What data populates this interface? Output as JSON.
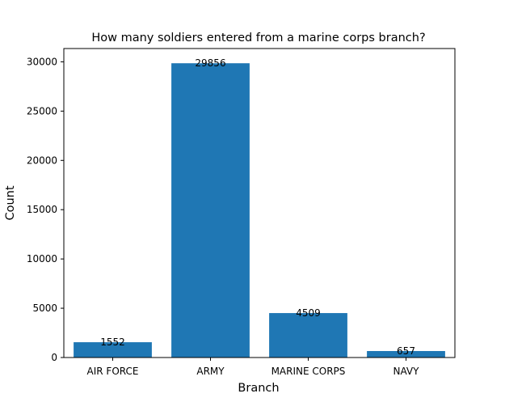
{
  "chart_data": {
    "type": "bar",
    "title": "How many soldiers entered from a marine corps branch?",
    "xlabel": "Branch",
    "ylabel": "Count",
    "categories": [
      "AIR FORCE",
      "ARMY",
      "MARINE CORPS",
      "NAVY"
    ],
    "values": [
      1552,
      29856,
      4509,
      657
    ],
    "data_labels": [
      "1552",
      "29856",
      "4509",
      "657"
    ],
    "yticks": [
      0,
      5000,
      10000,
      15000,
      20000,
      25000,
      30000
    ],
    "ylim": [
      0,
      31349
    ],
    "grid": false,
    "legend": "none",
    "bar_color": "#1f77b4"
  }
}
